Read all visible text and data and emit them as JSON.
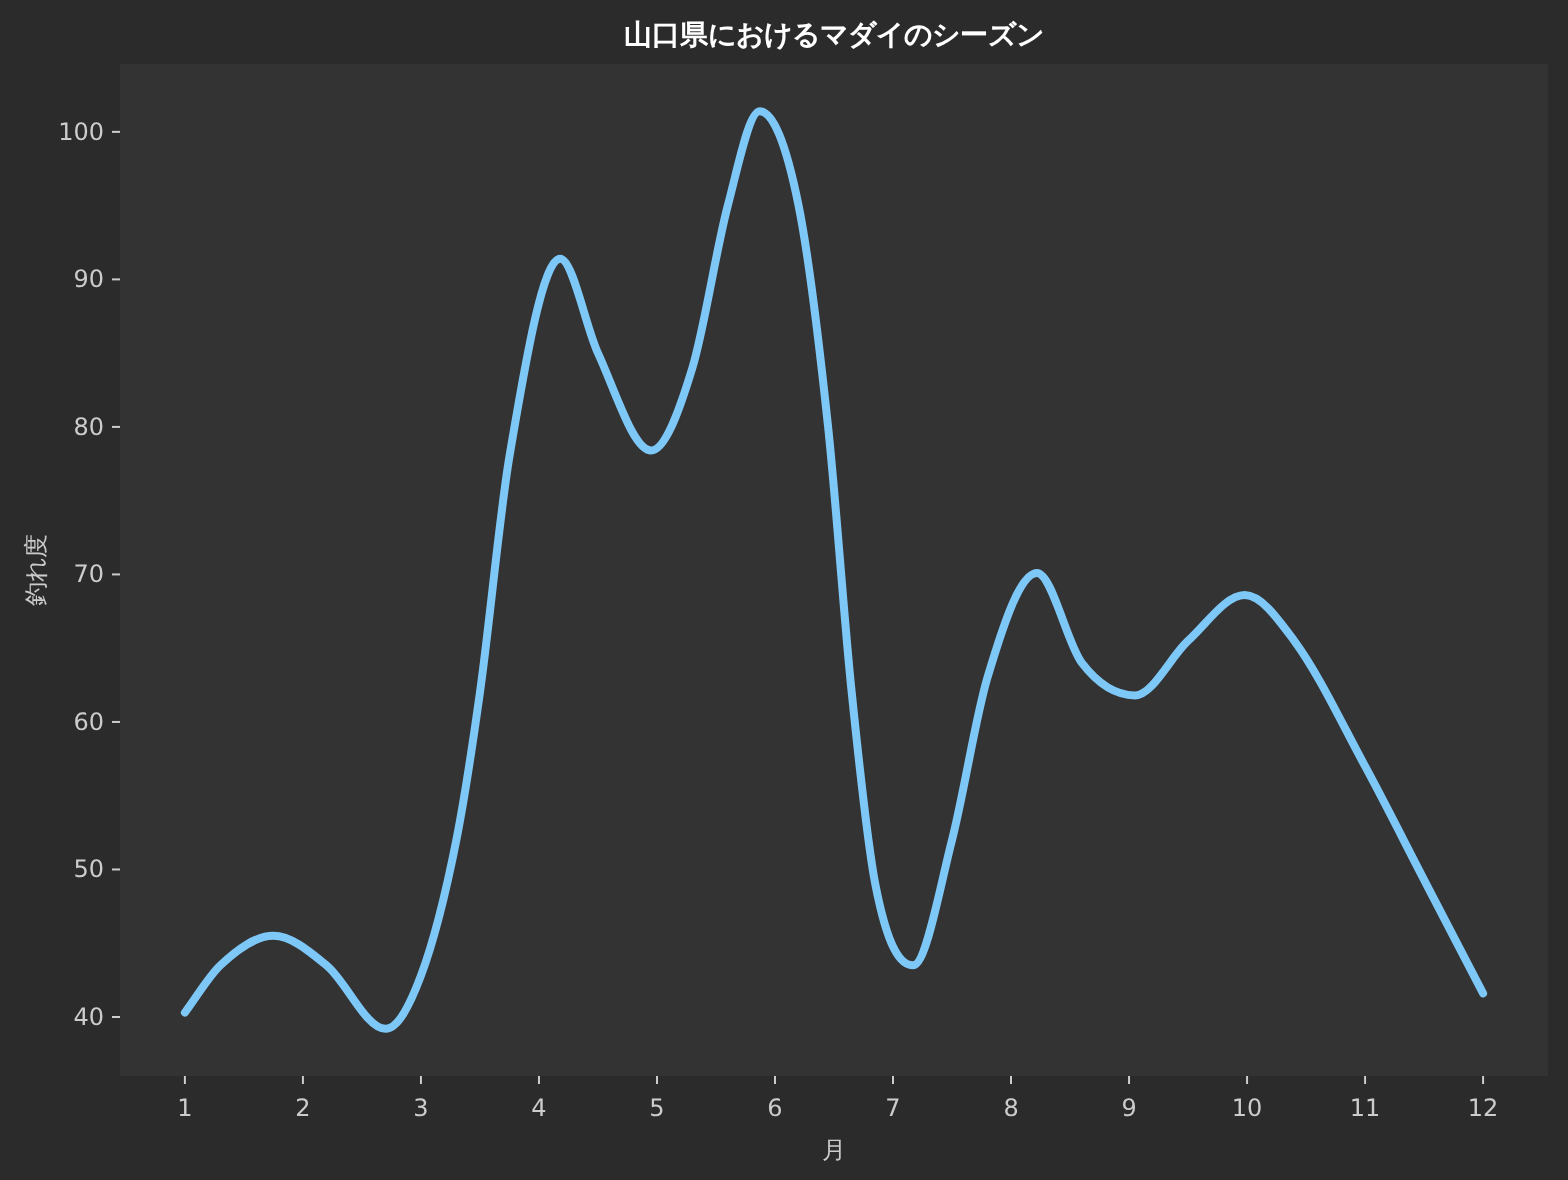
{
  "chart_data": {
    "type": "line",
    "title": "山口県におけるマダイのシーズン",
    "xlabel": "月",
    "ylabel": "釣れ度",
    "xlim": [
      0.45,
      12.55
    ],
    "ylim": [
      36,
      104.6
    ],
    "xticks": [
      1,
      2,
      3,
      4,
      5,
      6,
      7,
      8,
      9,
      10,
      11,
      12
    ],
    "yticks": [
      40,
      50,
      60,
      70,
      80,
      90,
      100
    ],
    "grid": false,
    "marker": "none",
    "line_style": "solid",
    "series": [
      {
        "color": "#7ec8f8",
        "x": [
          1,
          1.3,
          1.75,
          2.2,
          2.7,
          3,
          3.3,
          3.5,
          3.75,
          4.18,
          4.5,
          4.95,
          5.3,
          5.6,
          5.87,
          6.2,
          6.45,
          6.65,
          6.85,
          7.17,
          7.5,
          7.8,
          8.22,
          8.6,
          9.05,
          9.5,
          9.98,
          10.4,
          11,
          11.5,
          12
        ],
        "values": [
          40.3,
          43.5,
          45.5,
          43.5,
          39.2,
          42.8,
          52,
          62,
          78,
          91.4,
          85,
          78.4,
          84,
          95,
          101.4,
          95,
          80,
          62,
          49,
          43.5,
          52,
          63,
          70.1,
          64,
          61.8,
          65.5,
          68.6,
          65.5,
          57,
          49.3,
          41.6
        ]
      }
    ]
  }
}
